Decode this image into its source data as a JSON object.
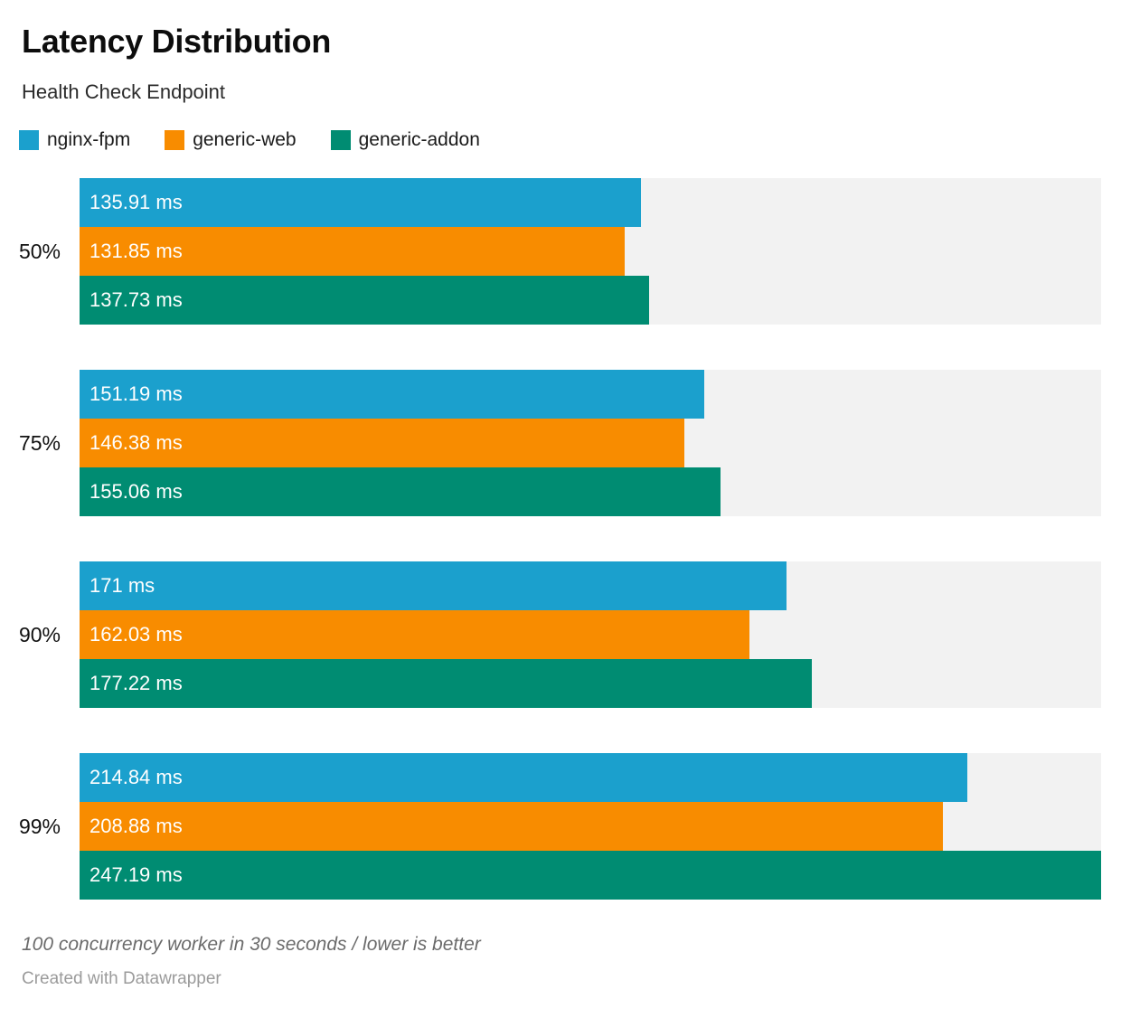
{
  "header": {
    "title": "Latency Distribution",
    "subtitle": "Health Check Endpoint"
  },
  "chart_data": {
    "type": "bar",
    "orientation": "horizontal",
    "title": "Latency Distribution",
    "subtitle": "Health Check Endpoint",
    "categories": [
      "50%",
      "75%",
      "90%",
      "99%"
    ],
    "series": [
      {
        "name": "nginx-fpm",
        "color": "#1ba0cd",
        "values": [
          135.91,
          151.19,
          171,
          214.84
        ],
        "labels": [
          "135.91 ms",
          "151.19 ms",
          "171 ms",
          "214.84 ms"
        ]
      },
      {
        "name": "generic-web",
        "color": "#f88c00",
        "values": [
          131.85,
          146.38,
          162.03,
          208.88
        ],
        "labels": [
          "131.85 ms",
          "146.38 ms",
          "162.03 ms",
          "208.88 ms"
        ]
      },
      {
        "name": "generic-addon",
        "color": "#008c72",
        "values": [
          137.73,
          155.06,
          177.22,
          247.19
        ],
        "labels": [
          "137.73 ms",
          "155.06 ms",
          "177.22 ms",
          "247.19 ms"
        ]
      }
    ],
    "unit": "ms",
    "xlim": [
      0,
      247.19
    ],
    "value_label_position": "inside-left",
    "legend_position": "top",
    "grid": false,
    "track_color": "#f2f2f2",
    "value_label_color": "#ffffff"
  },
  "footer": {
    "note": "100 concurrency worker in 30 seconds / lower is better",
    "credit": "Created with Datawrapper"
  }
}
